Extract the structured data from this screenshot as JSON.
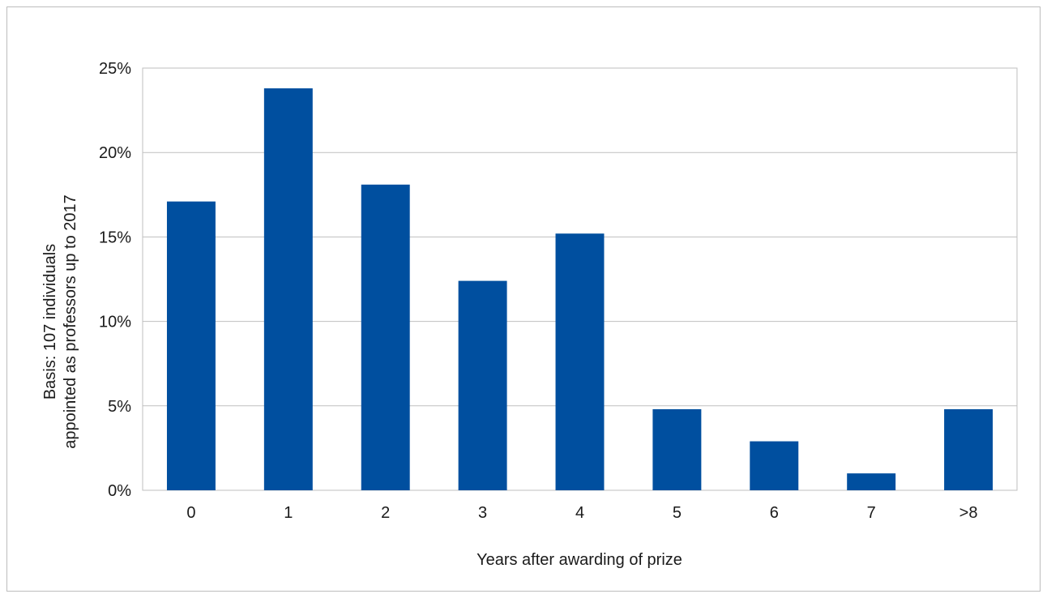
{
  "chart_data": {
    "type": "bar",
    "categories": [
      "0",
      "1",
      "2",
      "3",
      "4",
      "5",
      "6",
      "7",
      ">8"
    ],
    "values": [
      17.1,
      23.8,
      18.1,
      12.4,
      15.2,
      4.8,
      2.9,
      1.0,
      4.8
    ],
    "ytick_labels": [
      "0%",
      "5%",
      "10%",
      "15%",
      "20%",
      "25%"
    ],
    "ylim": [
      0,
      25
    ],
    "xlabel": "Years after awarding of prize",
    "ylabel_line1": "Basis: 107 individuals",
    "ylabel_line2": "appointed as professors up to 2017",
    "grid": "horizontal",
    "colors": {
      "bar": "#004f9f",
      "grid": "#bfbfbf"
    }
  }
}
